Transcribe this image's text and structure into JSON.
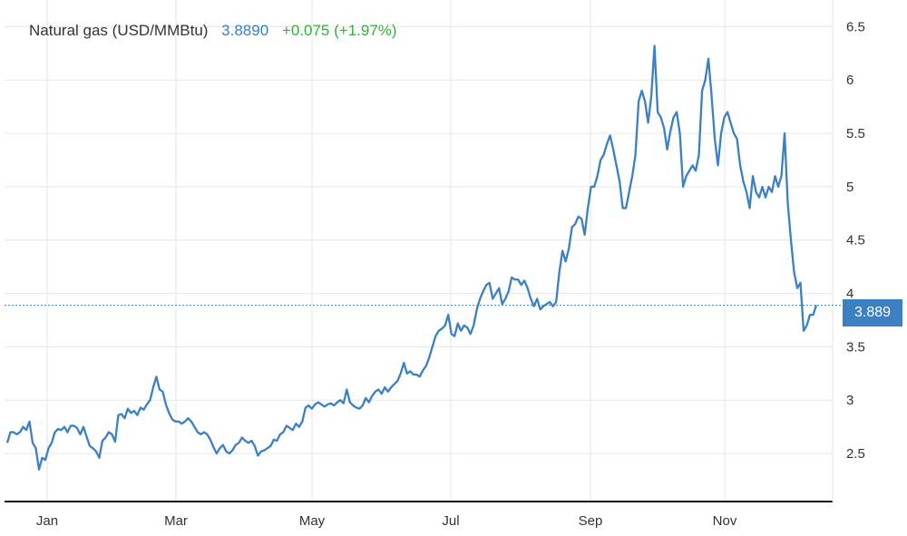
{
  "header": {
    "title": "Natural gas (USD/MMBtu)",
    "price": "3.8890",
    "change": "+0.075 (+1.97%)"
  },
  "current_price_label": "3.889",
  "colors": {
    "line": "#3a80c3",
    "price_text": "#3a80c3",
    "change_text": "#35b13b",
    "price_tag_bg": "#3a80c3",
    "grid": "#e6e6e6",
    "axis": "#111111"
  },
  "chart_data": {
    "type": "line",
    "title": "Natural gas (USD/MMBtu)",
    "xlabel": "",
    "ylabel": "",
    "ylim": [
      2.05,
      6.75
    ],
    "grid": true,
    "legend": "none",
    "y_ticks": [
      "2.5",
      "3",
      "3.5",
      "4",
      "4.5",
      "5",
      "5.5",
      "6",
      "6.5"
    ],
    "x_ticks": [
      "Jan",
      "Mar",
      "May",
      "Jul",
      "Sep",
      "Nov"
    ],
    "current_value": 3.889,
    "series": [
      {
        "values": [
          2.6,
          2.7,
          2.7,
          2.68,
          2.7,
          2.75,
          2.72,
          2.8,
          2.6,
          2.55,
          2.35,
          2.46,
          2.44,
          2.55,
          2.6,
          2.7,
          2.73,
          2.72,
          2.75,
          2.7,
          2.76,
          2.76,
          2.74,
          2.68,
          2.75,
          2.66,
          2.57,
          2.55,
          2.52,
          2.46,
          2.62,
          2.65,
          2.7,
          2.68,
          2.61,
          2.86,
          2.87,
          2.83,
          2.92,
          2.88,
          2.9,
          2.86,
          2.93,
          2.91,
          2.96,
          3.0,
          3.12,
          3.22,
          3.1,
          3.08,
          2.96,
          2.88,
          2.82,
          2.8,
          2.8,
          2.78,
          2.8,
          2.83,
          2.8,
          2.75,
          2.7,
          2.68,
          2.7,
          2.68,
          2.63,
          2.56,
          2.5,
          2.55,
          2.58,
          2.52,
          2.5,
          2.53,
          2.58,
          2.6,
          2.65,
          2.62,
          2.6,
          2.62,
          2.57,
          2.48,
          2.52,
          2.53,
          2.55,
          2.57,
          2.63,
          2.62,
          2.68,
          2.7,
          2.76,
          2.74,
          2.72,
          2.78,
          2.75,
          2.8,
          2.93,
          2.95,
          2.92,
          2.96,
          2.98,
          2.96,
          2.94,
          2.96,
          2.97,
          2.95,
          2.98,
          3.0,
          2.97,
          3.1,
          2.98,
          2.95,
          2.93,
          2.92,
          2.95,
          3.02,
          2.98,
          3.04,
          3.08,
          3.1,
          3.06,
          3.12,
          3.08,
          3.12,
          3.15,
          3.18,
          3.25,
          3.35,
          3.25,
          3.27,
          3.24,
          3.24,
          3.22,
          3.28,
          3.32,
          3.4,
          3.5,
          3.6,
          3.65,
          3.67,
          3.7,
          3.8,
          3.62,
          3.6,
          3.72,
          3.65,
          3.7,
          3.68,
          3.62,
          3.7,
          3.85,
          3.95,
          4.02,
          4.08,
          4.1,
          3.95,
          4.0,
          4.05,
          3.9,
          3.95,
          4.02,
          4.15,
          4.13,
          4.13,
          4.08,
          4.12,
          4.05,
          3.95,
          3.88,
          3.95,
          3.85,
          3.88,
          3.9,
          3.92,
          3.88,
          3.92,
          4.2,
          4.4,
          4.3,
          4.42,
          4.62,
          4.65,
          4.72,
          4.7,
          4.55,
          4.8,
          5.0,
          5.0,
          5.1,
          5.25,
          5.3,
          5.4,
          5.48,
          5.35,
          5.2,
          5.05,
          4.8,
          4.8,
          4.95,
          5.1,
          5.3,
          5.8,
          5.9,
          5.8,
          5.6,
          5.85,
          6.32,
          5.7,
          5.65,
          5.55,
          5.35,
          5.52,
          5.65,
          5.7,
          5.5,
          5.0,
          5.1,
          5.15,
          5.2,
          5.15,
          5.3,
          5.9,
          6.0,
          6.2,
          5.85,
          5.45,
          5.2,
          5.5,
          5.65,
          5.7,
          5.6,
          5.5,
          5.45,
          5.2,
          5.05,
          4.95,
          4.8,
          5.1,
          4.95,
          4.9,
          5.0,
          4.9,
          5.0,
          4.95,
          5.1,
          5.0,
          5.1,
          5.5,
          4.85,
          4.5,
          4.2,
          4.05,
          4.1,
          3.65,
          3.7,
          3.8,
          3.8,
          3.89
        ]
      }
    ]
  }
}
